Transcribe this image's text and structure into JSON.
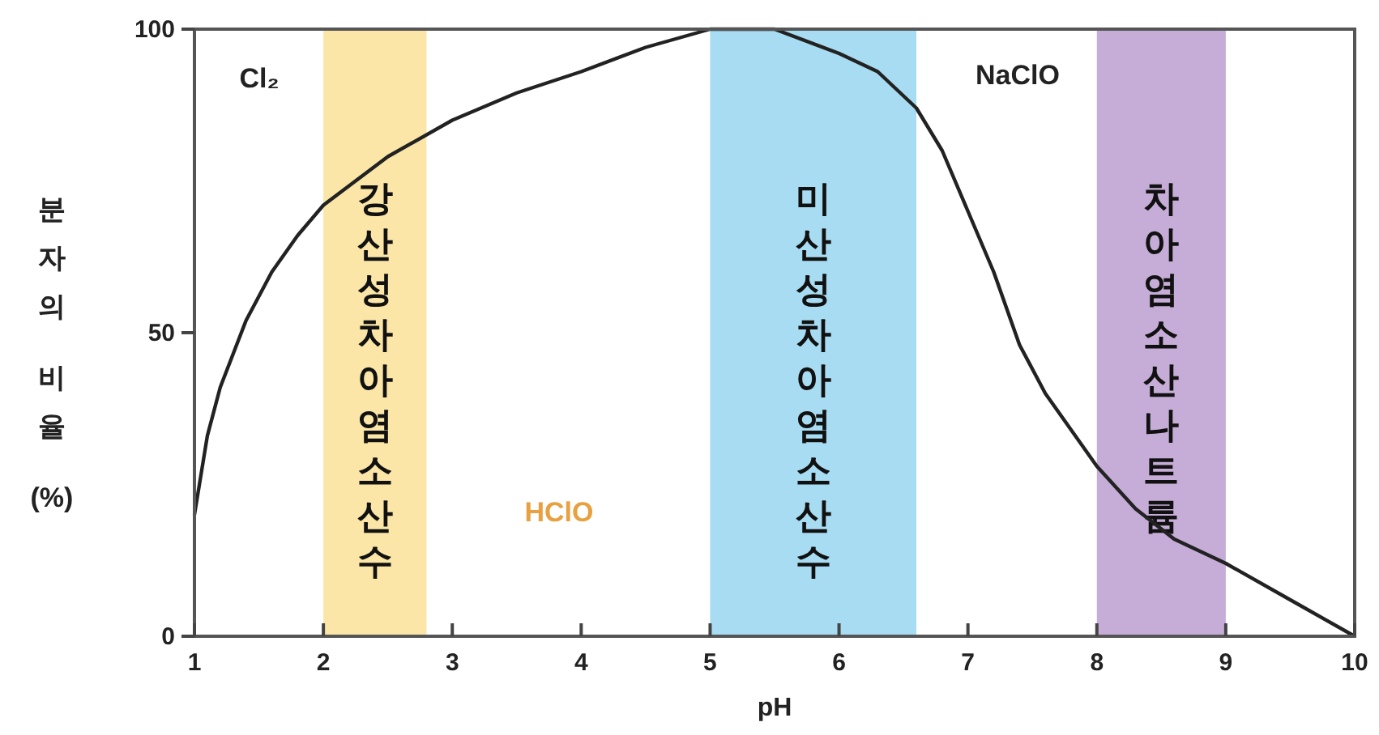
{
  "chart_data": {
    "type": "line",
    "xlabel": "pH",
    "ylabel": "분자의 비율 (%)",
    "xlim": [
      1,
      10
    ],
    "ylim": [
      0,
      100
    ],
    "xticks": [
      1,
      2,
      3,
      4,
      5,
      6,
      7,
      8,
      9,
      10
    ],
    "yticks": [
      0,
      50,
      100
    ],
    "grid": false,
    "marker": "none",
    "line_style": "solid",
    "series": [
      {
        "color": "#222222",
        "x": [
          1,
          1.1,
          1.2,
          1.4,
          1.6,
          1.8,
          2,
          2.5,
          3,
          3.5,
          4,
          4.5,
          5,
          5.5,
          6,
          6.3,
          6.6,
          6.8,
          7,
          7.2,
          7.4,
          7.6,
          7.8,
          8,
          8.3,
          8.6,
          9,
          9.5,
          10
        ],
        "values": [
          20,
          33,
          41,
          52,
          60,
          66,
          71,
          79,
          85,
          89.5,
          93,
          97,
          100,
          100,
          96,
          93,
          87,
          80,
          70,
          60,
          48,
          40,
          34,
          28,
          21,
          16,
          12,
          6,
          0
        ]
      }
    ],
    "bands": [
      {
        "axis": "x",
        "from": 2,
        "to": 2.8,
        "label": "강산성차아염소산수",
        "color": "#fbe6a8"
      },
      {
        "axis": "x",
        "from": 5,
        "to": 6.6,
        "label": "미산성차아염소산수",
        "color": "#a8dcf2"
      },
      {
        "axis": "x",
        "from": 8,
        "to": 9,
        "label": "차아염소산나트륨",
        "color": "#c6add8"
      }
    ],
    "annotations": [
      "Cl₂",
      "HClO",
      "NaClO"
    ]
  }
}
